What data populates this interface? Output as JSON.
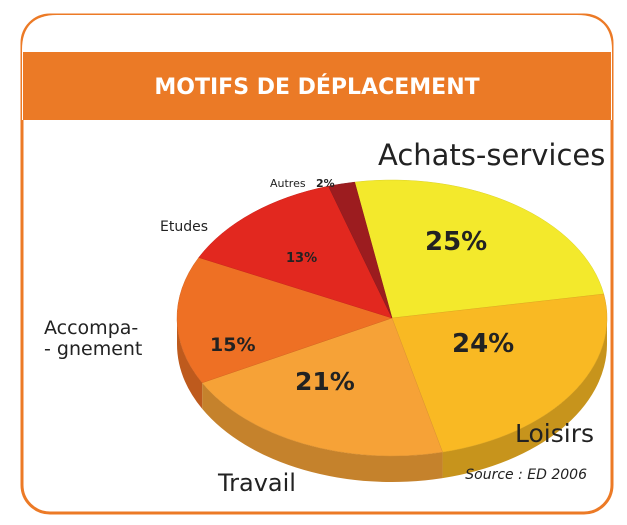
{
  "chart_data": {
    "type": "pie",
    "title": "MOTIFS DE DÉPLACEMENT",
    "categories": [
      "Achats-services",
      "Loisirs",
      "Travail",
      "Accompa-\n- gnement",
      "Etudes",
      "Autres"
    ],
    "values": [
      25,
      24,
      21,
      15,
      13,
      2
    ],
    "value_labels": [
      "25%",
      "24%",
      "21%",
      "15%",
      "13%",
      "2%"
    ],
    "colors": [
      "#f3e92c",
      "#f9b923",
      "#f6a237",
      "#ee7024",
      "#e2281f",
      "#9c1c1f"
    ],
    "source": "Source : ED 2006"
  }
}
